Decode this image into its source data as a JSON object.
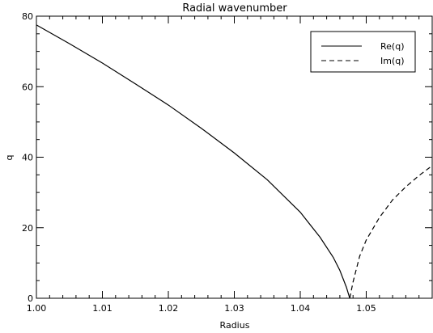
{
  "chart_data": {
    "type": "line",
    "title": "Radial wavenumber",
    "xlabel": "Radius",
    "ylabel": "q",
    "xlim": [
      1.0,
      1.06
    ],
    "ylim": [
      0,
      80
    ],
    "x_ticks": [
      "1.00",
      "1.01",
      "1.02",
      "1.03",
      "1.04",
      "1.05"
    ],
    "y_ticks": [
      "0",
      "20",
      "40",
      "60",
      "80"
    ],
    "grid": false,
    "legend_position": "top-right",
    "series": [
      {
        "name": "Re(q)",
        "style": "solid",
        "color": "#000000",
        "x": [
          1.0,
          1.005,
          1.01,
          1.015,
          1.02,
          1.025,
          1.03,
          1.035,
          1.04,
          1.043,
          1.045,
          1.046,
          1.047,
          1.0475
        ],
        "y": [
          77.5,
          72.2,
          66.7,
          60.8,
          54.8,
          48.2,
          41.2,
          33.6,
          24.4,
          17.3,
          11.6,
          7.9,
          3.1,
          0.0
        ]
      },
      {
        "name": "Im(q)",
        "style": "dashed",
        "color": "#000000",
        "x": [
          1.0475,
          1.048,
          1.049,
          1.05,
          1.052,
          1.054,
          1.056,
          1.058,
          1.06
        ],
        "y": [
          0.0,
          4.6,
          11.9,
          16.5,
          22.9,
          27.9,
          31.6,
          34.8,
          37.6
        ]
      }
    ]
  }
}
